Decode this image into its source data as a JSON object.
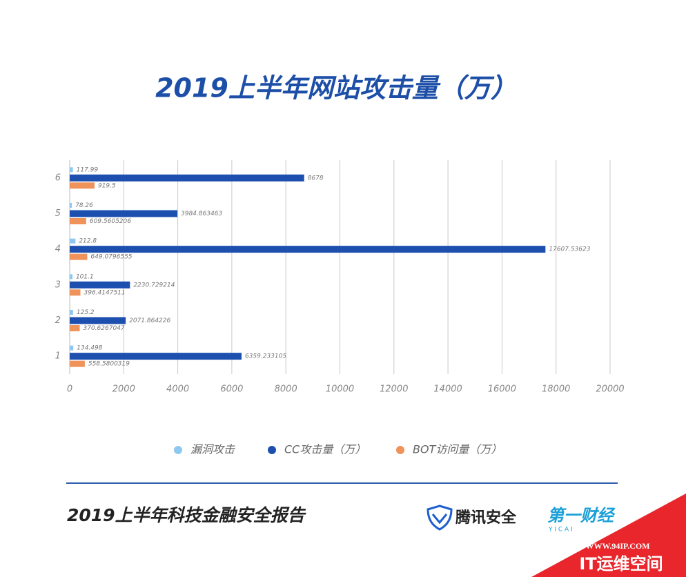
{
  "chart_data": {
    "type": "barh",
    "title": "2019上半年网站攻击量（万）",
    "categories": [
      "1",
      "2",
      "3",
      "4",
      "5",
      "6"
    ],
    "series": [
      {
        "name": "漏洞攻击",
        "color": "#8ec8f0",
        "values": [
          134.498,
          125.2,
          101.1,
          212.8,
          78.26,
          117.99
        ]
      },
      {
        "name": "CC攻击量（万）",
        "color": "#1c4fae",
        "values": [
          6359.233105,
          2071.864226,
          2230.729214,
          17607.53623,
          3984.863463,
          8678
        ]
      },
      {
        "name": "BOT访问量（万）",
        "color": "#f0935a",
        "values": [
          558.5800319,
          370.6267047,
          396.4147511,
          649.0796555,
          609.5605206,
          919.5
        ]
      }
    ],
    "xlim": [
      0,
      20000
    ],
    "xticks": [
      0,
      2000,
      4000,
      6000,
      8000,
      10000,
      12000,
      14000,
      16000,
      18000,
      20000
    ],
    "grid": true,
    "legend": "bottom"
  },
  "footer": {
    "report": "2019上半年科技金融安全报告",
    "brand1": "腾讯安全",
    "brand2": "第一财经",
    "brand2_sub": "Y I C A I"
  },
  "watermark": {
    "url": "WWW.94IP.COM",
    "name": "IT运维空间"
  }
}
